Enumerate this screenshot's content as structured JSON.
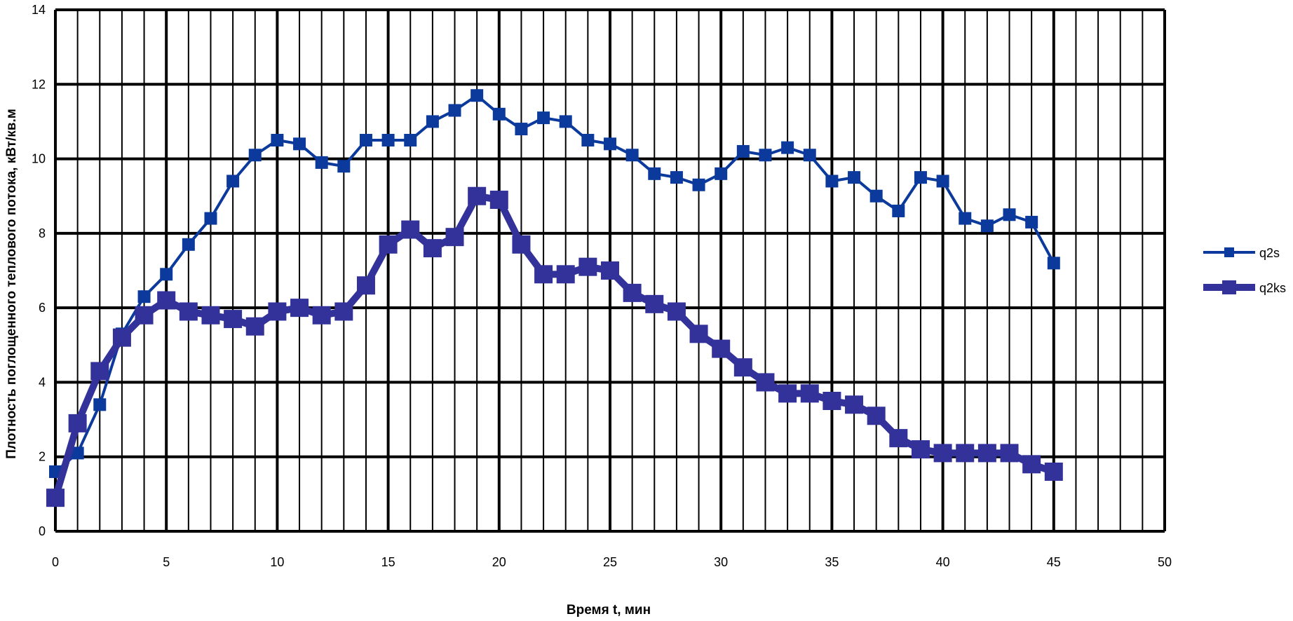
{
  "chart_data": {
    "type": "line",
    "title": "",
    "xlabel": "Время t, мин",
    "ylabel": "Плотность поглощенного теплового потока, кВт/кв.м",
    "xlim": [
      0,
      50
    ],
    "ylim": [
      0,
      14
    ],
    "x_ticks": [
      "0",
      "5",
      "10",
      "15",
      "20",
      "25",
      "30",
      "35",
      "40",
      "45",
      "50"
    ],
    "y_ticks": [
      "0",
      "2",
      "4",
      "6",
      "8",
      "10",
      "12",
      "14"
    ],
    "grid": true,
    "legend_position": "right",
    "x": [
      0,
      1,
      2,
      3,
      4,
      5,
      6,
      7,
      8,
      9,
      10,
      11,
      12,
      13,
      14,
      15,
      16,
      17,
      18,
      19,
      20,
      21,
      22,
      23,
      24,
      25,
      26,
      27,
      28,
      29,
      30,
      31,
      32,
      33,
      34,
      35,
      36,
      37,
      38,
      39,
      40,
      41,
      42,
      43,
      44,
      45
    ],
    "series": [
      {
        "name": "q2s",
        "color": "#0b3a9c",
        "values": [
          1.6,
          2.1,
          3.4,
          5.3,
          6.3,
          6.9,
          7.7,
          8.4,
          9.4,
          10.1,
          10.5,
          10.4,
          9.9,
          9.8,
          10.5,
          10.5,
          10.5,
          11.0,
          11.3,
          11.7,
          11.2,
          10.8,
          11.1,
          11.0,
          10.5,
          10.4,
          10.1,
          9.6,
          9.5,
          9.3,
          9.6,
          10.2,
          10.1,
          10.3,
          10.1,
          9.4,
          9.5,
          9.0,
          8.6,
          9.5,
          9.4,
          8.4,
          8.2,
          8.5,
          8.3,
          7.2
        ]
      },
      {
        "name": "q2ks",
        "color": "#32329a",
        "values": [
          0.9,
          2.9,
          4.3,
          5.2,
          5.8,
          6.2,
          5.9,
          5.8,
          5.7,
          5.5,
          5.9,
          6.0,
          5.8,
          5.9,
          6.6,
          7.7,
          8.1,
          7.6,
          7.9,
          9.0,
          8.9,
          7.7,
          6.9,
          6.9,
          7.1,
          7.0,
          6.4,
          6.1,
          5.9,
          5.3,
          4.9,
          4.4,
          4.0,
          3.7,
          3.7,
          3.5,
          3.4,
          3.1,
          2.5,
          2.2,
          2.1,
          2.1,
          2.1,
          2.1,
          1.8,
          1.6
        ]
      }
    ]
  }
}
